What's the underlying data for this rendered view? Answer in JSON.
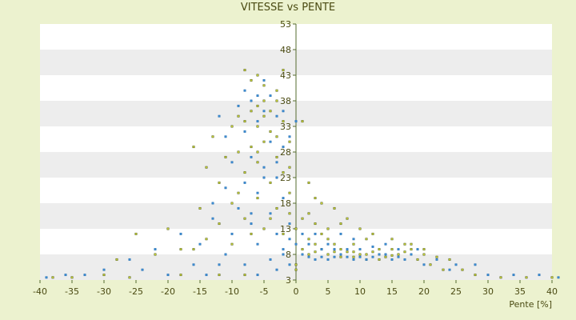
{
  "chart_data": {
    "type": "scatter",
    "title": "VITESSE vs PENTE",
    "xlabel": "Pente [%]",
    "ylabel": "",
    "xlim": [
      -40,
      40
    ],
    "ylim": [
      3,
      53
    ],
    "x_ticks": [
      -40,
      -35,
      -30,
      -25,
      -20,
      -15,
      -10,
      -5,
      0,
      5,
      10,
      15,
      20,
      25,
      30,
      35,
      40
    ],
    "x_tick_labels": [
      "-40",
      "-35",
      "-30",
      "-25",
      "-20",
      "-15",
      "-10",
      "-5",
      "0",
      "5",
      "10",
      "15",
      "20",
      "25",
      "30",
      "35",
      "40"
    ],
    "y_ticks": [
      3,
      8,
      13,
      18,
      23,
      28,
      33,
      38,
      43,
      48,
      53
    ],
    "y_tick_labels": [
      "3",
      "8",
      "13",
      "18",
      "23",
      "28",
      "33",
      "38",
      "43",
      "48",
      "53"
    ],
    "grid": "horizontal bands",
    "plot_background_colors": [
      "#ffffff",
      "#ededed"
    ],
    "axis_color": "#556b2f",
    "series": [
      {
        "color": "#c8d23a",
        "edge_color": "#4f5a12",
        "points": [
          [
            -8,
            44
          ],
          [
            -7,
            42
          ],
          [
            -6,
            43
          ],
          [
            -5,
            41
          ],
          [
            -5,
            38
          ],
          [
            -6,
            37
          ],
          [
            -4,
            36
          ],
          [
            -7,
            36
          ],
          [
            -9,
            35
          ],
          [
            -8,
            34
          ],
          [
            -6,
            33
          ],
          [
            -4,
            32
          ],
          [
            -3,
            31
          ],
          [
            -5,
            30
          ],
          [
            -7,
            29
          ],
          [
            -9,
            28
          ],
          [
            -11,
            27
          ],
          [
            -10,
            33
          ],
          [
            -3,
            38
          ],
          [
            -2,
            34
          ],
          [
            -1,
            30
          ],
          [
            -3,
            27
          ],
          [
            -6,
            26
          ],
          [
            -2,
            24
          ],
          [
            -8,
            24
          ],
          [
            -12,
            22
          ],
          [
            -4,
            22
          ],
          [
            -1,
            20
          ],
          [
            -6,
            19
          ],
          [
            -10,
            18
          ],
          [
            -15,
            17
          ],
          [
            -3,
            17
          ],
          [
            -1,
            16
          ],
          [
            -8,
            15
          ],
          [
            -12,
            14
          ],
          [
            -20,
            13
          ],
          [
            -25,
            12
          ],
          [
            -5,
            13
          ],
          [
            -2,
            12
          ],
          [
            0,
            13
          ],
          [
            1,
            15
          ],
          [
            2,
            16
          ],
          [
            3,
            14
          ],
          [
            4,
            12
          ],
          [
            2,
            11
          ],
          [
            5,
            11
          ],
          [
            3,
            10
          ],
          [
            6,
            10
          ],
          [
            4,
            9
          ],
          [
            7,
            9
          ],
          [
            8,
            8.5
          ],
          [
            9,
            8.5
          ],
          [
            10,
            8
          ],
          [
            11,
            8
          ],
          [
            12,
            8.5
          ],
          [
            13,
            8
          ],
          [
            14,
            7.5
          ],
          [
            15,
            7.8
          ],
          [
            16,
            8
          ],
          [
            17,
            8.5
          ],
          [
            18,
            9
          ],
          [
            20,
            8
          ],
          [
            22,
            7.5
          ],
          [
            24,
            7
          ],
          [
            1,
            9
          ],
          [
            2,
            8
          ],
          [
            3,
            8.5
          ],
          [
            5,
            8
          ],
          [
            6,
            8.5
          ],
          [
            7,
            7.5
          ],
          [
            9,
            7.5
          ],
          [
            11,
            7
          ],
          [
            13,
            7
          ],
          [
            3,
            19
          ],
          [
            4,
            18
          ],
          [
            6,
            17
          ],
          [
            8,
            15
          ],
          [
            10,
            13
          ],
          [
            12,
            12
          ],
          [
            15,
            11
          ],
          [
            18,
            10
          ],
          [
            20,
            9
          ],
          [
            -18,
            9
          ],
          [
            -22,
            8
          ],
          [
            -28,
            7
          ],
          [
            -14,
            11
          ],
          [
            -16,
            9
          ],
          [
            -30,
            4
          ],
          [
            -35,
            3.5
          ],
          [
            -38,
            3.5
          ],
          [
            -26,
            3.5
          ],
          [
            -18,
            4
          ],
          [
            -12,
            4
          ],
          [
            -8,
            4
          ],
          [
            28,
            4
          ],
          [
            32,
            3.5
          ],
          [
            36,
            3.5
          ],
          [
            40,
            3.5
          ],
          [
            26,
            5
          ],
          [
            -13,
            31
          ],
          [
            -14,
            25
          ],
          [
            -16,
            29
          ],
          [
            1,
            34
          ],
          [
            -2,
            44
          ],
          [
            -3,
            40
          ],
          [
            -5,
            35
          ],
          [
            -6,
            28
          ],
          [
            -9,
            20
          ],
          [
            0,
            6
          ],
          [
            0,
            5
          ],
          [
            -1,
            25
          ],
          [
            2,
            22
          ],
          [
            -4,
            15
          ],
          [
            -7,
            12
          ],
          [
            -10,
            10
          ],
          [
            5,
            13
          ],
          [
            7,
            14
          ],
          [
            9,
            10
          ],
          [
            11,
            11
          ],
          [
            13,
            9
          ],
          [
            15,
            9
          ],
          [
            17,
            10
          ],
          [
            19,
            7
          ],
          [
            21,
            6
          ],
          [
            23,
            5
          ]
        ]
      },
      {
        "color": "#3d8fd6",
        "edge_color": "#2a6fb0",
        "points": [
          [
            -8,
            40
          ],
          [
            -6,
            39
          ],
          [
            -5,
            42
          ],
          [
            -4,
            39
          ],
          [
            -7,
            38
          ],
          [
            -9,
            37
          ],
          [
            -5,
            36
          ],
          [
            -3,
            35
          ],
          [
            -6,
            34
          ],
          [
            -8,
            32
          ],
          [
            -4,
            30
          ],
          [
            -2,
            29
          ],
          [
            -7,
            27
          ],
          [
            -10,
            26
          ],
          [
            -5,
            25
          ],
          [
            -3,
            23
          ],
          [
            -8,
            22
          ],
          [
            -11,
            21
          ],
          [
            -6,
            20
          ],
          [
            -2,
            19
          ],
          [
            -9,
            17
          ],
          [
            -4,
            16
          ],
          [
            -13,
            15
          ],
          [
            -7,
            14
          ],
          [
            -1,
            14
          ],
          [
            -3,
            12
          ],
          [
            -10,
            12
          ],
          [
            -15,
            10
          ],
          [
            -6,
            10
          ],
          [
            -2,
            9
          ],
          [
            1,
            8
          ],
          [
            2,
            7.5
          ],
          [
            3,
            7
          ],
          [
            4,
            7.5
          ],
          [
            5,
            7
          ],
          [
            6,
            7.5
          ],
          [
            7,
            8
          ],
          [
            8,
            7.5
          ],
          [
            9,
            7
          ],
          [
            10,
            7.5
          ],
          [
            11,
            7
          ],
          [
            12,
            7.5
          ],
          [
            13,
            8
          ],
          [
            14,
            8
          ],
          [
            15,
            7
          ],
          [
            16,
            7.5
          ],
          [
            17,
            7
          ],
          [
            18,
            8
          ],
          [
            2,
            10
          ],
          [
            4,
            9
          ],
          [
            6,
            9
          ],
          [
            8,
            9
          ],
          [
            10,
            9
          ],
          [
            12,
            9.5
          ],
          [
            1,
            12
          ],
          [
            3,
            12
          ],
          [
            5,
            10
          ],
          [
            -1,
            11
          ],
          [
            0,
            10
          ],
          [
            -30,
            5
          ],
          [
            -33,
            4
          ],
          [
            -36,
            4
          ],
          [
            -39,
            3.5
          ],
          [
            -24,
            5
          ],
          [
            -20,
            4
          ],
          [
            -16,
            6
          ],
          [
            -12,
            6
          ],
          [
            -14,
            4
          ],
          [
            -6,
            4
          ],
          [
            -3,
            5
          ],
          [
            -1,
            6
          ],
          [
            20,
            6
          ],
          [
            24,
            5
          ],
          [
            28,
            6
          ],
          [
            30,
            4
          ],
          [
            34,
            4
          ],
          [
            38,
            4
          ],
          [
            41,
            3.5
          ],
          [
            -2,
            36
          ],
          [
            0,
            34
          ],
          [
            -1,
            31
          ],
          [
            -3,
            26
          ],
          [
            -5,
            23
          ],
          [
            -7,
            16
          ],
          [
            -11,
            8
          ],
          [
            -8,
            6
          ],
          [
            -4,
            7
          ],
          [
            -2,
            8
          ],
          [
            7,
            12
          ],
          [
            9,
            11
          ],
          [
            14,
            10
          ],
          [
            16,
            9
          ],
          [
            19,
            9
          ],
          [
            22,
            7
          ],
          [
            25,
            6
          ],
          [
            -12,
            35
          ],
          [
            -11,
            31
          ],
          [
            -13,
            18
          ],
          [
            -18,
            12
          ],
          [
            -22,
            9
          ],
          [
            -26,
            7
          ]
        ]
      }
    ]
  }
}
